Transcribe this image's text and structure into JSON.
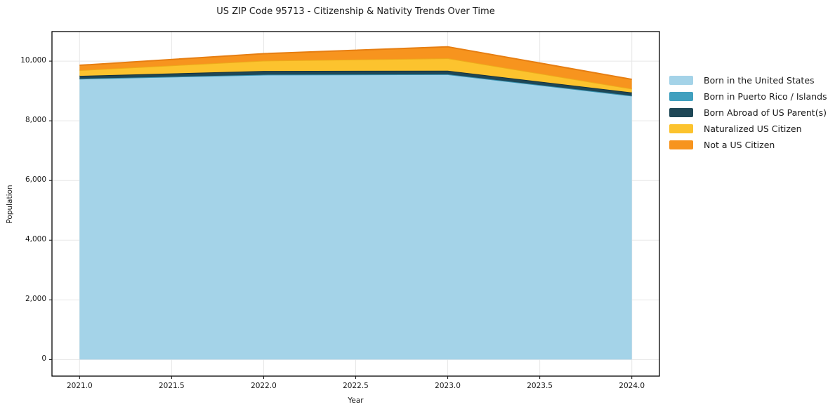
{
  "chart_data": {
    "type": "area",
    "stacked": true,
    "title": "US ZIP Code 95713 - Citizenship & Nativity Trends Over Time",
    "xlabel": "Year",
    "ylabel": "Population",
    "x": [
      2021,
      2022,
      2023,
      2024
    ],
    "series": [
      {
        "name": "Born in the United States",
        "color": "#a4d3e8",
        "edge_color": "#8cc3de",
        "values": [
          9410,
          9545,
          9560,
          8840
        ]
      },
      {
        "name": "Born in Puerto Rico / Islands",
        "color": "#41a0bf",
        "edge_color": "#3690ae",
        "values": [
          0,
          0,
          0,
          0
        ]
      },
      {
        "name": "Born Abroad of US Parent(s)",
        "color": "#1e4756",
        "edge_color": "#15323d",
        "values": [
          95,
          125,
          120,
          110
        ]
      },
      {
        "name": "Naturalized US Citizen",
        "color": "#fcc32e",
        "edge_color": "#edab1a",
        "values": [
          190,
          345,
          415,
          125
        ]
      },
      {
        "name": "Not a US Citizen",
        "color": "#f7941e",
        "edge_color": "#e67e12",
        "values": [
          165,
          235,
          385,
          315
        ]
      }
    ],
    "xlim": [
      2020.85,
      2024.15
    ],
    "ylim": [
      -555,
      10990
    ],
    "x_ticks": [
      {
        "value": 2021.0,
        "label": "2021.0"
      },
      {
        "value": 2021.5,
        "label": "2021.5"
      },
      {
        "value": 2022.0,
        "label": "2022.0"
      },
      {
        "value": 2022.5,
        "label": "2022.5"
      },
      {
        "value": 2023.0,
        "label": "2023.0"
      },
      {
        "value": 2023.5,
        "label": "2023.5"
      },
      {
        "value": 2024.0,
        "label": "2024.0"
      }
    ],
    "y_ticks": [
      {
        "value": 0,
        "label": "0"
      },
      {
        "value": 2000,
        "label": "2,000"
      },
      {
        "value": 4000,
        "label": "4,000"
      },
      {
        "value": 6000,
        "label": "6,000"
      },
      {
        "value": 8000,
        "label": "8,000"
      },
      {
        "value": 10000,
        "label": "10,000"
      }
    ],
    "grid": true,
    "grid_color": "#e7e7e7",
    "spine_color": "#000000",
    "tick_color": "#1a1a1a",
    "background": "#ffffff",
    "legend_position": "right"
  }
}
